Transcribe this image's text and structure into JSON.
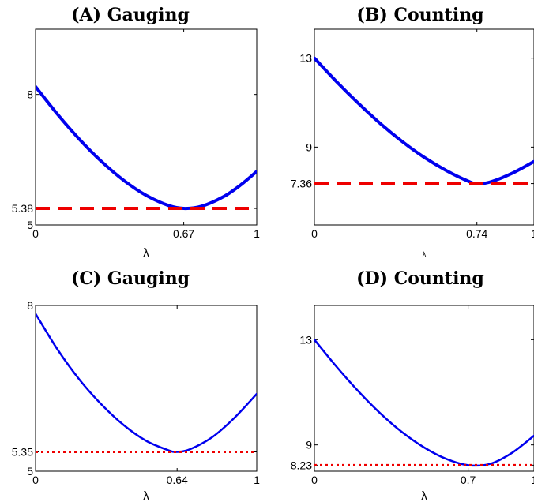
{
  "chart_data": [
    {
      "type": "line",
      "title": "(A) Gauging",
      "xlabel": "λ",
      "ylabel": "",
      "xlim": [
        0,
        1
      ],
      "ylim": [
        5,
        9.5
      ],
      "xticks": [
        "0",
        "0.67",
        "1"
      ],
      "yticks": [
        "5",
        "5.38",
        "8"
      ],
      "series": [
        {
          "x": [
            0,
            0.1,
            0.2,
            0.3,
            0.4,
            0.5,
            0.6,
            0.67,
            0.75,
            0.85,
            0.93,
            1.0
          ],
          "y": [
            8.18,
            7.54,
            6.96,
            6.45,
            6.02,
            5.68,
            5.45,
            5.38,
            5.43,
            5.65,
            5.93,
            6.23
          ]
        },
        {
          "x": [
            0,
            1
          ],
          "y": [
            5.38,
            5.38
          ],
          "style": "dashed"
        }
      ],
      "colors": {
        "curve": "#0000ee",
        "reference": "#ee0000"
      }
    },
    {
      "type": "line",
      "title": "(B) Counting",
      "xlabel": "λ",
      "ylabel": "",
      "xlim": [
        0,
        1
      ],
      "ylim": [
        5.5,
        14.3
      ],
      "xticks": [
        "0",
        "0.74",
        "1"
      ],
      "yticks": [
        "7.36",
        "9",
        "13"
      ],
      "series": [
        {
          "x": [
            0,
            0.1,
            0.2,
            0.3,
            0.4,
            0.5,
            0.6,
            0.7,
            0.74,
            0.8,
            0.9,
            1.0
          ],
          "y": [
            13.0,
            11.95,
            10.97,
            10.06,
            9.25,
            8.54,
            7.95,
            7.47,
            7.36,
            7.43,
            7.82,
            8.35
          ]
        },
        {
          "x": [
            0,
            1
          ],
          "y": [
            7.36,
            7.36
          ],
          "style": "dashed"
        }
      ],
      "colors": {
        "curve": "#0000ee",
        "reference": "#ee0000"
      }
    },
    {
      "type": "line",
      "title": "(C) Gauging",
      "xlabel": "λ",
      "ylabel": "",
      "xlim": [
        0,
        1
      ],
      "ylim": [
        5,
        8
      ],
      "xticks": [
        "0",
        "0.64",
        "1"
      ],
      "yticks": [
        "5",
        "5.35",
        "8"
      ],
      "series": [
        {
          "x": [
            0,
            0.1,
            0.2,
            0.3,
            0.4,
            0.5,
            0.6,
            0.64,
            0.7,
            0.8,
            0.9,
            1.0
          ],
          "y": [
            7.85,
            7.2,
            6.65,
            6.2,
            5.83,
            5.55,
            5.38,
            5.35,
            5.4,
            5.62,
            5.97,
            6.4
          ]
        },
        {
          "x": [
            0,
            1
          ],
          "y": [
            5.35,
            5.35
          ],
          "style": "dotted"
        }
      ],
      "colors": {
        "curve": "#0000ee",
        "reference": "#ee0000"
      }
    },
    {
      "type": "line",
      "title": "(D) Counting",
      "xlabel": "λ",
      "ylabel": "",
      "xlim": [
        0,
        1
      ],
      "ylim": [
        8,
        14.3
      ],
      "xticks": [
        "0",
        "0.7",
        "1"
      ],
      "yticks": [
        "8.23",
        "9",
        "13"
      ],
      "series": [
        {
          "x": [
            0,
            0.1,
            0.2,
            0.3,
            0.4,
            0.5,
            0.6,
            0.7,
            0.8,
            0.9,
            1.0
          ],
          "y": [
            13.0,
            11.98,
            11.04,
            10.2,
            9.48,
            8.9,
            8.47,
            8.23,
            8.28,
            8.7,
            9.35
          ]
        },
        {
          "x": [
            0,
            1
          ],
          "y": [
            8.23,
            8.23
          ],
          "style": "dotted"
        }
      ],
      "colors": {
        "curve": "#0000ee",
        "reference": "#ee0000"
      }
    }
  ]
}
